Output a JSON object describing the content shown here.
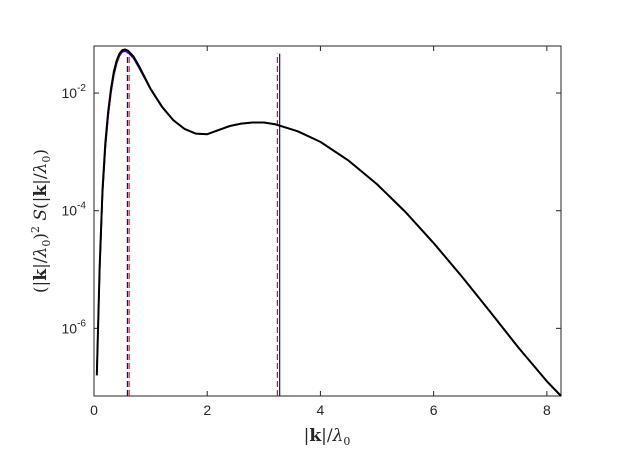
{
  "chart_data": {
    "type": "line",
    "xlabel": "|k|/λ₀",
    "ylabel": "(|k|/λ₀)² S(|k|/λ₀)",
    "xlim": [
      0,
      8.25
    ],
    "ylim_log10": [
      -7.15,
      -1.2
    ],
    "yscale": "log",
    "grid": false,
    "x_ticks": [
      {
        "value": 0,
        "label": "0"
      },
      {
        "value": 2,
        "label": "2"
      },
      {
        "value": 4,
        "label": "4"
      },
      {
        "value": 6,
        "label": "6"
      },
      {
        "value": 8,
        "label": "8"
      }
    ],
    "y_ticks": [
      {
        "exp": -6,
        "base": "10",
        "sup": "-6"
      },
      {
        "exp": -4,
        "base": "10",
        "sup": "-4"
      },
      {
        "exp": -2,
        "base": "10",
        "sup": "-2"
      }
    ],
    "series": [
      {
        "color": "#0000ff",
        "style": "solid",
        "x": [
          0.05,
          0.1,
          0.15,
          0.2,
          0.25,
          0.3,
          0.35,
          0.4,
          0.45,
          0.5,
          0.55,
          0.6,
          0.7,
          0.8,
          0.9,
          1.0,
          1.2,
          1.4,
          1.6,
          1.8,
          2.0,
          2.2,
          2.4,
          2.6,
          2.8,
          3.0,
          3.2,
          3.6,
          4.0,
          4.5,
          5.0,
          5.5,
          6.0,
          6.5,
          7.0,
          7.5,
          8.0,
          8.25
        ],
        "log10_y": [
          -6.75,
          -5.05,
          -3.75,
          -2.95,
          -2.4,
          -2.0,
          -1.7,
          -1.5,
          -1.37,
          -1.3,
          -1.29,
          -1.31,
          -1.41,
          -1.58,
          -1.76,
          -1.94,
          -2.24,
          -2.46,
          -2.61,
          -2.69,
          -2.7,
          -2.63,
          -2.56,
          -2.52,
          -2.5,
          -2.5,
          -2.53,
          -2.65,
          -2.83,
          -3.15,
          -3.55,
          -4.02,
          -4.55,
          -5.12,
          -5.72,
          -6.33,
          -6.9,
          -7.15
        ]
      },
      {
        "color": "#ff0000",
        "style": "solid",
        "x": [
          0.05,
          0.1,
          0.15,
          0.2,
          0.25,
          0.3,
          0.35,
          0.4,
          0.45,
          0.5,
          0.55,
          0.6,
          0.7,
          0.8,
          0.9,
          1.0,
          1.2,
          1.4,
          1.6,
          1.8,
          2.0,
          2.2,
          2.4,
          2.6,
          2.8,
          3.0,
          3.2,
          3.6,
          4.0,
          4.5,
          5.0,
          5.5,
          6.0,
          6.5,
          7.0,
          7.5,
          8.0,
          8.25
        ],
        "log10_y": [
          -6.73,
          -5.0,
          -3.7,
          -2.92,
          -2.38,
          -1.98,
          -1.68,
          -1.48,
          -1.35,
          -1.28,
          -1.27,
          -1.29,
          -1.39,
          -1.56,
          -1.75,
          -1.93,
          -2.23,
          -2.46,
          -2.61,
          -2.69,
          -2.7,
          -2.63,
          -2.56,
          -2.52,
          -2.5,
          -2.5,
          -2.53,
          -2.65,
          -2.83,
          -3.15,
          -3.55,
          -4.02,
          -4.55,
          -5.12,
          -5.72,
          -6.33,
          -6.9,
          -7.15
        ]
      },
      {
        "color": "#000000",
        "style": "solid",
        "x": [
          0.05,
          0.1,
          0.15,
          0.2,
          0.25,
          0.3,
          0.35,
          0.4,
          0.45,
          0.5,
          0.55,
          0.6,
          0.7,
          0.8,
          0.9,
          1.0,
          1.2,
          1.4,
          1.6,
          1.8,
          2.0,
          2.2,
          2.4,
          2.6,
          2.8,
          3.0,
          3.2,
          3.6,
          4.0,
          4.5,
          5.0,
          5.5,
          6.0,
          6.5,
          7.0,
          7.5,
          8.0,
          8.25
        ],
        "log10_y": [
          -6.8,
          -4.95,
          -3.65,
          -2.85,
          -2.32,
          -1.93,
          -1.64,
          -1.45,
          -1.33,
          -1.27,
          -1.26,
          -1.28,
          -1.38,
          -1.55,
          -1.74,
          -1.93,
          -2.23,
          -2.46,
          -2.61,
          -2.69,
          -2.7,
          -2.63,
          -2.56,
          -2.52,
          -2.5,
          -2.5,
          -2.53,
          -2.65,
          -2.83,
          -3.15,
          -3.55,
          -4.02,
          -4.55,
          -5.12,
          -5.72,
          -6.33,
          -6.9,
          -7.15
        ]
      }
    ],
    "vlines": [
      {
        "x": 0.59,
        "color": "#0000ff",
        "style": "dashed"
      },
      {
        "x": 0.62,
        "color": "#ff0000",
        "style": "dashed"
      },
      {
        "x": 3.24,
        "color": "#ff0000",
        "style": "dashed"
      },
      {
        "x": 3.28,
        "color": "#0000ff",
        "style": "solid"
      }
    ],
    "vline_top_log10": -1.33
  }
}
